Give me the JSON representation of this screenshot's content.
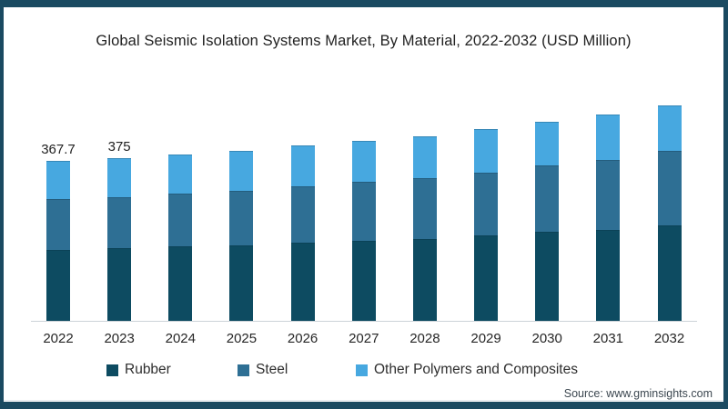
{
  "title": "Global Seismic Isolation Systems Market, By Material, 2022-2032 (USD Million)",
  "source": "Source: www.gminsights.com",
  "colors": {
    "frame": "#1a4a61",
    "panel_background": "#ffffff",
    "axis_line": "#ccd3d8",
    "rubber": "#0d4b61",
    "steel": "#2e6f94",
    "other_polymers": "#47a8e0"
  },
  "chart_data": {
    "type": "bar",
    "stacked": true,
    "title": "Global Seismic Isolation Systems Market, By Material, 2022-2032 (USD Million)",
    "categories": [
      "2022",
      "2023",
      "2024",
      "2025",
      "2026",
      "2027",
      "2028",
      "2029",
      "2030",
      "2031",
      "2032"
    ],
    "series": [
      {
        "name": "Rubber",
        "color": "#0d4b61",
        "values": [
          162.5,
          166.5,
          172.0,
          174.0,
          179.5,
          185.0,
          188.0,
          196.0,
          205.5,
          209.0,
          219.5
        ]
      },
      {
        "name": "Steel",
        "color": "#2e6f94",
        "values": [
          117.2,
          118.5,
          120.0,
          126.0,
          129.5,
          134.5,
          140.0,
          146.0,
          151.5,
          161.5,
          171.0
        ]
      },
      {
        "name": "Other Polymers and Composites",
        "color": "#47a8e0",
        "values": [
          88.0,
          90.0,
          91.0,
          92.0,
          94.0,
          95.5,
          97.0,
          99.0,
          101.0,
          103.5,
          104.5
        ]
      }
    ],
    "totals": [
      367.7,
      375.0,
      383.0,
      392.0,
      403.0,
      415.0,
      425.0,
      441.0,
      458.0,
      474.0,
      495.0
    ],
    "value_labels": [
      "367.7",
      "375",
      "",
      "",
      "",
      "",
      "",
      "",
      "",
      "",
      ""
    ],
    "xlabel": "",
    "ylabel": "",
    "grid": false,
    "y_axis_visible": false,
    "legend_position": "bottom"
  }
}
